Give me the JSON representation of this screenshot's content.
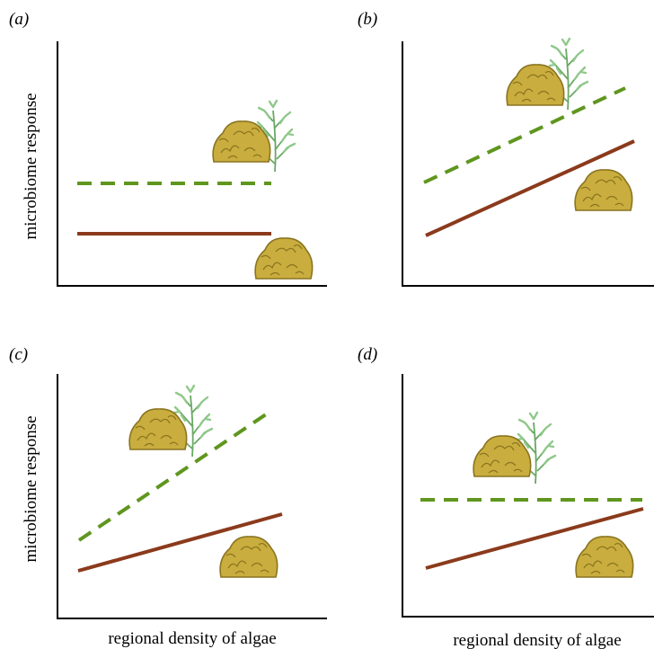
{
  "figure": {
    "panels": [
      {
        "label": "(a)",
        "y_label": "microbiome response",
        "x_label": ""
      },
      {
        "label": "(b)",
        "y_label": "",
        "x_label": ""
      },
      {
        "label": "(c)",
        "y_label": "microbiome response",
        "x_label": "regional density of algae"
      },
      {
        "label": "(d)",
        "y_label": "",
        "x_label": "regional density of algae"
      }
    ],
    "colors": {
      "dashed_line": "#5f961e",
      "solid_line": "#8b3a1c",
      "axis": "#000000",
      "coral": "#c9ad3e",
      "coral_dark": "#8a7420",
      "plant": "#8fc98a",
      "plant_stem": "#6aa865"
    },
    "icons": {
      "coral": "coral-mound-icon",
      "plant": "plant-frond-icon"
    }
  }
}
